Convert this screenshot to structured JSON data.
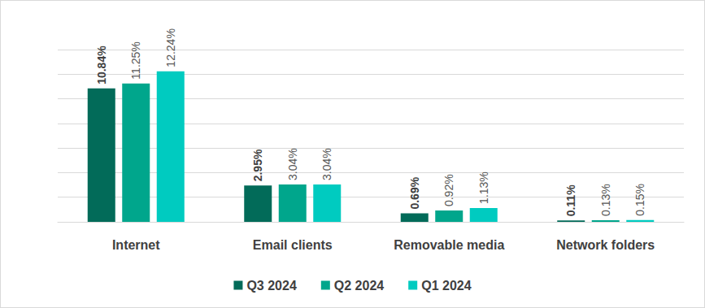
{
  "chart_data": {
    "type": "bar",
    "categories": [
      "Internet",
      "Email clients",
      "Removable media",
      "Network folders"
    ],
    "series": [
      {
        "name": "Q3 2024",
        "color": "#026b59",
        "values": [
          10.84,
          2.95,
          0.69,
          0.11
        ],
        "value_labels": [
          "10.84%",
          "2.95%",
          "0.69%",
          "0.11%"
        ]
      },
      {
        "name": "Q2 2024",
        "color": "#00a68c",
        "values": [
          11.25,
          3.04,
          0.92,
          0.13
        ],
        "value_labels": [
          "11.25%",
          "3.04%",
          "0.92%",
          "0.13%"
        ]
      },
      {
        "name": "Q1 2024",
        "color": "#00cbc0",
        "values": [
          12.24,
          3.04,
          1.13,
          0.15
        ],
        "value_labels": [
          "12.24%",
          "3.04%",
          "1.13%",
          "0.15%"
        ]
      }
    ],
    "ylim": [
      0,
      14
    ],
    "yticks": [
      0,
      2,
      4,
      6,
      8,
      10,
      12,
      14
    ],
    "grid": true,
    "legend": "bottom",
    "data_labels": true,
    "tick_labels": "x"
  }
}
